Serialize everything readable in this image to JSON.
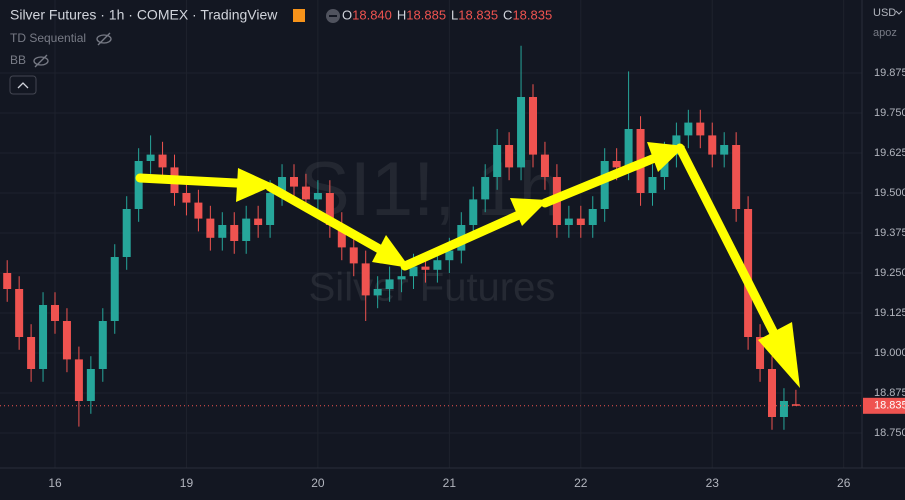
{
  "header": {
    "title": "Silver Futures · 1h · COMEX · TradingView",
    "ohlc": [
      {
        "key": "O",
        "text": "18.840"
      },
      {
        "key": "H",
        "text": "18.885"
      },
      {
        "key": "L",
        "text": "18.835"
      },
      {
        "key": "C",
        "text": "18.835"
      }
    ],
    "indicators": [
      "TD Sequential",
      "BB"
    ],
    "currency": "USD",
    "account": "apoz",
    "watermark_symbol": "SI1!, 1h",
    "watermark_name": "Silver Futures"
  },
  "chart_data": {
    "type": "candlestick",
    "categories": [
      null,
      null,
      null,
      null,
      "16",
      null,
      null,
      null,
      null,
      null,
      null,
      null,
      null,
      null,
      null,
      "19",
      null,
      null,
      null,
      null,
      null,
      null,
      null,
      null,
      null,
      null,
      "20",
      null,
      null,
      null,
      null,
      null,
      null,
      null,
      null,
      null,
      null,
      "21",
      null,
      null,
      null,
      null,
      null,
      null,
      null,
      null,
      null,
      null,
      "22",
      null,
      null,
      null,
      null,
      null,
      null,
      null,
      null,
      null,
      null,
      "23",
      null,
      null,
      null,
      null,
      null,
      null,
      null,
      null,
      null,
      null,
      "26"
    ],
    "open": [
      19.25,
      19.2,
      19.05,
      18.95,
      19.15,
      19.1,
      18.98,
      18.85,
      18.95,
      19.1,
      19.3,
      19.45,
      19.6,
      19.62,
      19.58,
      19.5,
      19.47,
      19.42,
      19.36,
      19.4,
      19.35,
      19.42,
      19.4,
      19.5,
      19.55,
      19.52,
      19.48,
      19.5,
      19.4,
      19.33,
      19.28,
      19.18,
      19.2,
      19.23,
      19.24,
      19.27,
      19.26,
      19.29,
      19.32,
      19.4,
      19.48,
      19.55,
      19.65,
      19.58,
      19.8,
      19.62,
      19.55,
      19.4,
      19.42,
      19.4,
      19.45,
      19.6,
      19.58,
      19.7,
      19.5,
      19.55,
      19.62,
      19.68,
      19.72,
      19.68,
      19.62,
      19.65,
      19.45,
      19.05,
      18.95,
      18.8,
      18.84,
      null,
      null,
      null,
      null
    ],
    "high": [
      19.29,
      19.24,
      19.09,
      19.19,
      19.19,
      19.14,
      19.02,
      18.99,
      19.14,
      19.34,
      19.49,
      19.64,
      19.68,
      19.66,
      19.62,
      19.54,
      19.51,
      19.46,
      19.44,
      19.44,
      19.46,
      19.46,
      19.54,
      19.59,
      19.59,
      19.56,
      19.54,
      19.54,
      19.44,
      19.37,
      19.32,
      19.24,
      19.27,
      19.28,
      19.31,
      19.31,
      19.33,
      19.36,
      19.44,
      19.52,
      19.59,
      19.7,
      19.69,
      19.96,
      19.84,
      19.66,
      19.59,
      19.46,
      19.46,
      19.49,
      19.64,
      19.64,
      19.88,
      19.74,
      19.59,
      19.66,
      19.72,
      19.76,
      19.76,
      19.72,
      19.69,
      19.69,
      19.49,
      19.09,
      18.99,
      18.89,
      18.885,
      null,
      null,
      null,
      null
    ],
    "low": [
      19.16,
      19.01,
      18.91,
      18.91,
      19.06,
      18.94,
      18.77,
      18.81,
      18.91,
      19.06,
      19.26,
      19.41,
      19.56,
      19.54,
      19.46,
      19.43,
      19.38,
      19.32,
      19.32,
      19.31,
      19.31,
      19.36,
      19.36,
      19.46,
      19.48,
      19.44,
      19.44,
      19.36,
      19.29,
      19.24,
      19.1,
      19.14,
      19.16,
      19.19,
      19.2,
      19.22,
      19.22,
      19.25,
      19.28,
      19.36,
      19.44,
      19.51,
      19.54,
      19.54,
      19.58,
      19.51,
      19.36,
      19.36,
      19.36,
      19.36,
      19.41,
      19.54,
      19.54,
      19.46,
      19.46,
      19.51,
      19.58,
      19.64,
      19.64,
      19.58,
      19.58,
      19.41,
      19.01,
      18.91,
      18.76,
      18.76,
      18.835,
      null,
      null,
      null,
      null
    ],
    "close": [
      19.2,
      19.05,
      18.95,
      19.15,
      19.1,
      18.98,
      18.85,
      18.95,
      19.1,
      19.3,
      19.45,
      19.6,
      19.62,
      19.58,
      19.5,
      19.47,
      19.42,
      19.36,
      19.4,
      19.35,
      19.42,
      19.4,
      19.5,
      19.55,
      19.52,
      19.48,
      19.5,
      19.4,
      19.33,
      19.28,
      19.18,
      19.2,
      19.23,
      19.24,
      19.27,
      19.26,
      19.29,
      19.32,
      19.4,
      19.48,
      19.55,
      19.65,
      19.58,
      19.8,
      19.62,
      19.55,
      19.4,
      19.42,
      19.4,
      19.45,
      19.6,
      19.58,
      19.7,
      19.5,
      19.55,
      19.62,
      19.68,
      19.72,
      19.68,
      19.62,
      19.65,
      19.45,
      19.05,
      18.95,
      18.8,
      18.85,
      18.835,
      null,
      null,
      null,
      null
    ],
    "up_color": "#26a69a",
    "down_color": "#ef5350",
    "ylim": [
      18.65,
      20.1
    ],
    "yticks": [
      {
        "value": 18.75,
        "label": "18.750"
      },
      {
        "value": 18.875,
        "label": "18.875"
      },
      {
        "value": 19,
        "label": "19.000"
      },
      {
        "value": 19.125,
        "label": "19.125"
      },
      {
        "value": 19.25,
        "label": "19.250"
      },
      {
        "value": 19.375,
        "label": "19.375"
      },
      {
        "value": 19.5,
        "label": "19.500"
      },
      {
        "value": 19.625,
        "label": "19.625"
      },
      {
        "value": 19.75,
        "label": "19.750"
      },
      {
        "value": 19.875,
        "label": "19.875"
      }
    ],
    "last_price": {
      "value": 18.835,
      "label": "18.835"
    },
    "grid": true
  }
}
